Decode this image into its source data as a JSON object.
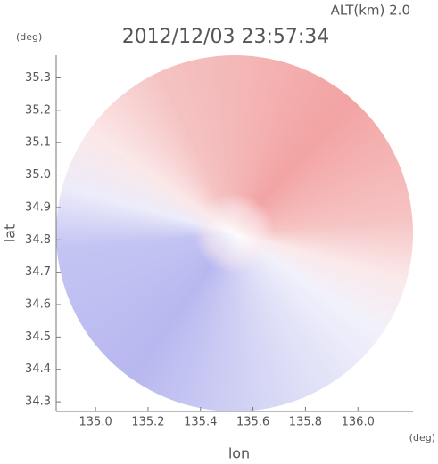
{
  "chart_data": {
    "type": "radar-image",
    "title": "2012/12/03 23:57:34",
    "annotation": "ALT(km) 2.0",
    "y_unit": "(deg)",
    "x_unit": "(deg)",
    "xlabel": "lon",
    "ylabel": "lat",
    "xlim": [
      134.85,
      136.21
    ],
    "ylim": [
      34.27,
      35.37
    ],
    "xticks": [
      {
        "value": 135,
        "label": "135.0"
      },
      135.2,
      135.4,
      135.6,
      135.8,
      {
        "value": 136,
        "label": "136.0"
      }
    ],
    "yticks": [
      34.3,
      34.4,
      34.5,
      34.6,
      34.7,
      34.8,
      34.9,
      {
        "value": 35,
        "label": "35.0"
      },
      35.1,
      35.2,
      35.3
    ]
  }
}
